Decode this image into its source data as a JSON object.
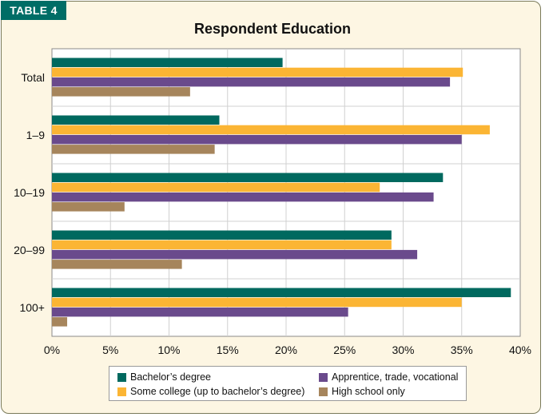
{
  "table_tag": "TABLE 4",
  "chart_data": {
    "type": "bar",
    "orientation": "horizontal",
    "title": "Respondent Education",
    "xlabel": "",
    "ylabel": "",
    "categories": [
      "Total",
      "1–9",
      "10–19",
      "20–99",
      "100+"
    ],
    "x_ticks": [
      "0%",
      "5%",
      "10%",
      "15%",
      "20%",
      "25%",
      "30%",
      "35%",
      "40%"
    ],
    "xlim": [
      0,
      40
    ],
    "grid": true,
    "legend_position": "bottom",
    "series": [
      {
        "name": "Bachelor’s degree",
        "color": "#00695f",
        "values": [
          19.7,
          14.3,
          33.4,
          29.0,
          39.2
        ]
      },
      {
        "name": "Some college (up to bachelor’s degree)",
        "color": "#fbb534",
        "values": [
          35.1,
          37.4,
          28.0,
          29.0,
          35.0
        ]
      },
      {
        "name": "Apprentice, trade, vocational",
        "color": "#6a4a8c",
        "values": [
          34.0,
          35.0,
          32.6,
          31.2,
          25.3
        ]
      },
      {
        "name": "High school only",
        "color": "#a6855c",
        "values": [
          11.8,
          13.9,
          6.2,
          11.1,
          1.3
        ]
      }
    ]
  },
  "legend": [
    {
      "label": "Bachelor’s degree",
      "color": "#00695f"
    },
    {
      "label": "Apprentice, trade, vocational",
      "color": "#6a4a8c"
    },
    {
      "label": "Some college (up to bachelor’s degree)",
      "color": "#fbb534"
    },
    {
      "label": "High school only",
      "color": "#a6855c"
    }
  ]
}
